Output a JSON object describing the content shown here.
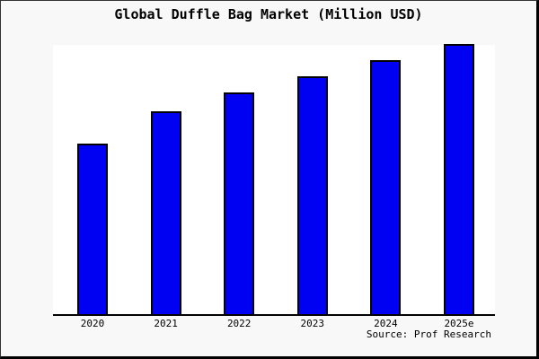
{
  "title": "Global Duffle Bag Market (Million USD)",
  "source": "Source: Prof Research",
  "colors": {
    "canvas_bg": "#f8f8f8",
    "plot_bg": "#ffffff",
    "bar_fill": "#0000f2",
    "bar_border": "#000000",
    "axis": "#000000",
    "text": "#000000"
  },
  "chart_data": {
    "type": "bar",
    "title": "Global Duffle Bag Market (Million USD)",
    "categories": [
      "2020",
      "2021",
      "2022",
      "2023",
      "2024",
      "2025e"
    ],
    "values": [
      63,
      75,
      82,
      88,
      94,
      100
    ],
    "value_scale_note": "no y-axis ticks or numeric labels shown; values are relative bar heights as percent of the tallest (2025e) bar",
    "xlabel": "",
    "ylabel": "",
    "ylim": [
      0,
      100
    ],
    "grid": false,
    "legend": "none",
    "annotations": [
      "Source: Prof Research"
    ]
  }
}
